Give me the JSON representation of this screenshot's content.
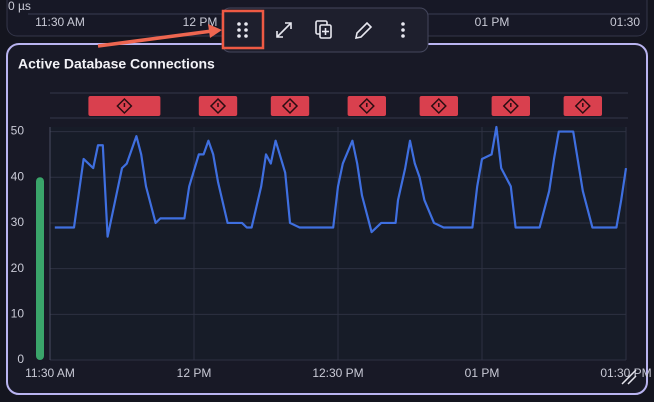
{
  "background_tile": {
    "y_label": "0 µs",
    "x_labels": [
      "11:30 AM",
      "12 PM",
      "01 PM",
      "01:30"
    ]
  },
  "chart_data": {
    "type": "line",
    "title": "Active Database Connections",
    "x": [
      1,
      5,
      7,
      9,
      10,
      11,
      12,
      13,
      15,
      16,
      18,
      19,
      20,
      22,
      23,
      28,
      29,
      31,
      32,
      33,
      34,
      35,
      37,
      40,
      41,
      42,
      44,
      45,
      46,
      47,
      49,
      50,
      52,
      56,
      59,
      60,
      61,
      63,
      64,
      65,
      67,
      69,
      72,
      72.5,
      74,
      75,
      76,
      77,
      78,
      80,
      82,
      85,
      88,
      89,
      90,
      92,
      93,
      94,
      96,
      97,
      102,
      104,
      105,
      106,
      109,
      111,
      113,
      114,
      118,
      119,
      120
    ],
    "series": [
      {
        "color": "#3f6fe0",
        "values": [
          29,
          29,
          44,
          42,
          47,
          47,
          27,
          32,
          42,
          43,
          49,
          45,
          38,
          30,
          31,
          31,
          38,
          45,
          45,
          48,
          45,
          39,
          30,
          30,
          29,
          29,
          38,
          45,
          43,
          48,
          41,
          30,
          29,
          29,
          29,
          38,
          43,
          48,
          43,
          36,
          28,
          30,
          30,
          35,
          42,
          48,
          43,
          40,
          35,
          30,
          29,
          29,
          29,
          38,
          44,
          45,
          51,
          42,
          38,
          29,
          29,
          37,
          44,
          50,
          50,
          37,
          29,
          29,
          29,
          35,
          42
        ]
      }
    ],
    "xlim": [
      0,
      120
    ],
    "xticks": [
      {
        "value": 0,
        "label": "11:30 AM"
      },
      {
        "value": 30,
        "label": "12 PM"
      },
      {
        "value": 60,
        "label": "12:30 PM"
      },
      {
        "value": 90,
        "label": "01 PM"
      },
      {
        "value": 120,
        "label": "01:30 PM"
      }
    ],
    "ylim": [
      0,
      51
    ],
    "yticks": [
      0,
      10,
      20,
      30,
      40,
      50
    ],
    "grid": true,
    "events": [
      {
        "start": 8,
        "end": 23
      },
      {
        "start": 31,
        "end": 39
      },
      {
        "start": 46,
        "end": 54
      },
      {
        "start": 62,
        "end": 70
      },
      {
        "start": 77,
        "end": 85
      },
      {
        "start": 92,
        "end": 100
      },
      {
        "start": 107,
        "end": 115
      }
    ],
    "event_color": "#d9404e",
    "gauge_value": 40,
    "gauge_color": "#3aa46a"
  }
}
